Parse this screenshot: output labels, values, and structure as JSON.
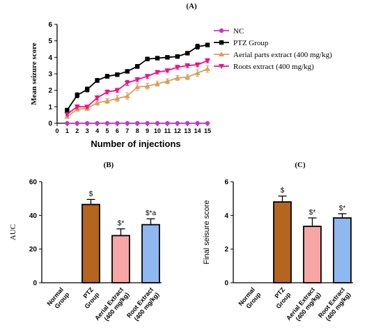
{
  "chart_data": [
    {
      "id": "A",
      "panel_label": "(A)",
      "type": "line",
      "xlabel": "Number of injections",
      "ylabel": "Mean seizure score",
      "xlim": [
        0,
        15
      ],
      "ylim": [
        0,
        6
      ],
      "x_ticks": [
        0,
        1,
        2,
        3,
        4,
        5,
        6,
        7,
        8,
        9,
        10,
        11,
        12,
        13,
        14,
        15
      ],
      "y_ticks": [
        0,
        1,
        2,
        3,
        4,
        5,
        6
      ],
      "x": [
        1,
        2,
        3,
        4,
        5,
        6,
        7,
        8,
        9,
        10,
        11,
        12,
        13,
        14,
        15
      ],
      "legend_position": "top-right",
      "series": [
        {
          "name": "NC",
          "color": "#cc33cc",
          "marker": "circle",
          "values": [
            0,
            0,
            0,
            0,
            0,
            0,
            0,
            0,
            0,
            0,
            0,
            0,
            0,
            0,
            0
          ],
          "errors": [
            0,
            0,
            0,
            0,
            0,
            0,
            0,
            0,
            0,
            0,
            0,
            0,
            0,
            0,
            0
          ]
        },
        {
          "name": "PTZ Group",
          "color": "#000000",
          "marker": "square",
          "values": [
            0.8,
            1.7,
            2.05,
            2.6,
            2.85,
            2.95,
            3.15,
            3.45,
            3.9,
            3.95,
            4.0,
            4.05,
            4.25,
            4.65,
            4.75
          ],
          "errors": [
            0.1,
            0.15,
            0.15,
            0.12,
            0.12,
            0.1,
            0.1,
            0.12,
            0.1,
            0.08,
            0.08,
            0.08,
            0.1,
            0.15,
            0.1
          ]
        },
        {
          "name": "Aerial parts extract (400 mg/kg)",
          "color": "#d9a05b",
          "marker": "triangle-up",
          "values": [
            0.4,
            0.85,
            0.9,
            1.25,
            1.35,
            1.5,
            1.65,
            2.2,
            2.25,
            2.4,
            2.55,
            2.75,
            2.8,
            3.05,
            3.3
          ],
          "errors": [
            0.1,
            0.12,
            0.12,
            0.15,
            0.15,
            0.18,
            0.2,
            0.2,
            0.18,
            0.15,
            0.15,
            0.15,
            0.15,
            0.2,
            0.2
          ]
        },
        {
          "name": "Roots extract (400 mg/kg)",
          "color": "#ee1188",
          "marker": "triangle-down",
          "values": [
            0.55,
            1.0,
            1.0,
            1.55,
            1.9,
            2.0,
            2.45,
            2.65,
            2.85,
            3.1,
            3.2,
            3.4,
            3.5,
            3.55,
            3.8
          ],
          "errors": [
            0.1,
            0.12,
            0.1,
            0.12,
            0.12,
            0.12,
            0.15,
            0.12,
            0.12,
            0.1,
            0.1,
            0.12,
            0.12,
            0.12,
            0.12
          ]
        }
      ]
    },
    {
      "id": "B",
      "panel_label": "(B)",
      "type": "bar",
      "ylabel": "AUC",
      "ylim": [
        0,
        60
      ],
      "y_ticks": [
        0,
        20,
        40,
        60
      ],
      "categories": [
        "Normal Group",
        "PTZ Group",
        "Aerial Extract (400 mg/kg)",
        "Root Extract (400 mg/kg)"
      ],
      "category_lines": [
        [
          "Normal",
          "Group"
        ],
        [
          "PTZ",
          "Group"
        ],
        [
          "Aerial Extract",
          "(400 mg/kg)"
        ],
        [
          "Root Extract",
          "(400 mg/kg)"
        ]
      ],
      "values": [
        0,
        46.5,
        28,
        34.5
      ],
      "errors": [
        0,
        3,
        4,
        3.5
      ],
      "annotations": [
        "",
        "$",
        "$*",
        "$*a"
      ],
      "colors": [
        "#ffffff",
        "#b5651d",
        "#f7a6a6",
        "#8fb8f0"
      ]
    },
    {
      "id": "C",
      "panel_label": "(C)",
      "type": "bar",
      "ylabel": "Final seisure score",
      "ylim": [
        0,
        6
      ],
      "y_ticks": [
        0,
        2,
        4,
        6
      ],
      "categories": [
        "Normal Group",
        "PTZ Group",
        "Aerial Extract (400 mg/kg)",
        "Root Extract (400 mg/kg)"
      ],
      "category_lines": [
        [
          "Normal",
          "Group"
        ],
        [
          "PTZ",
          "Group"
        ],
        [
          "Aerial Extract",
          "(400 mg/kg)"
        ],
        [
          "Root Extract",
          "(400 mg/kg)"
        ]
      ],
      "values": [
        0,
        4.8,
        3.35,
        3.85
      ],
      "errors": [
        0,
        0.35,
        0.5,
        0.25
      ],
      "annotations": [
        "",
        "$",
        "$*",
        "$*"
      ],
      "colors": [
        "#ffffff",
        "#b5651d",
        "#f7a6a6",
        "#8fb8f0"
      ]
    }
  ]
}
